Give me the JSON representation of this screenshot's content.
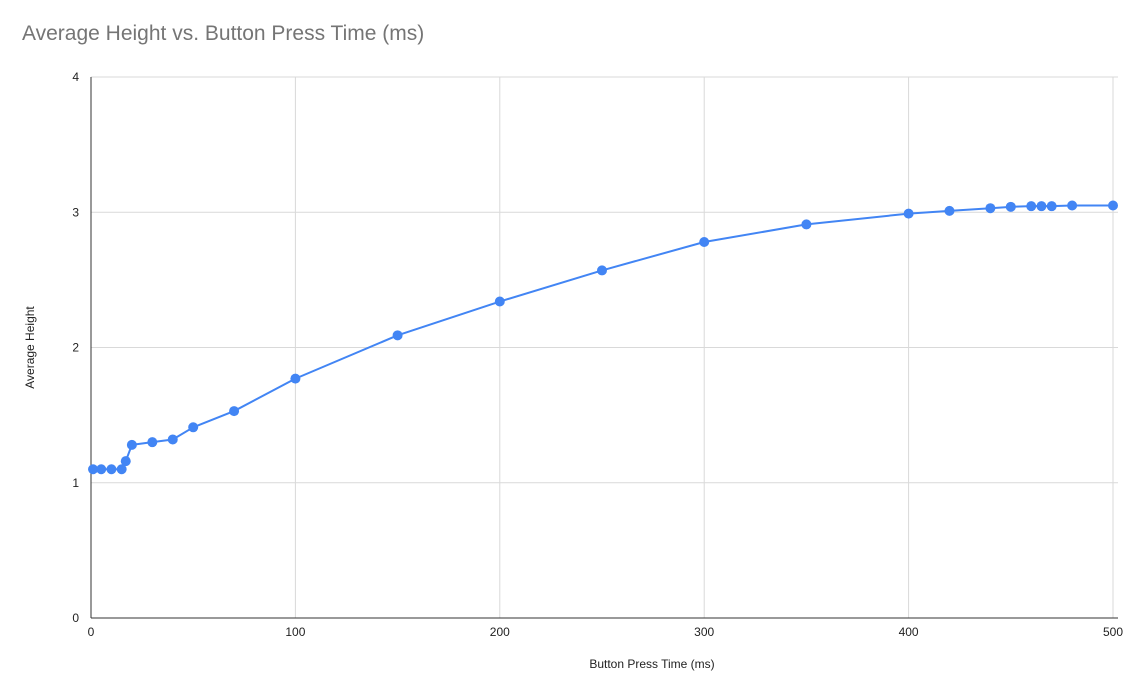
{
  "chart_data": {
    "type": "line",
    "title": "Average Height vs. Button Press Time (ms)",
    "xlabel": "Button Press Time (ms)",
    "ylabel": "Average Height",
    "xlim": [
      0,
      500
    ],
    "ylim": [
      0,
      4
    ],
    "xticks": [
      0,
      100,
      200,
      300,
      400,
      500
    ],
    "yticks": [
      0,
      1,
      2,
      3,
      4
    ],
    "grid": true,
    "legend": "none",
    "series": [
      {
        "color": "#4285f4",
        "points": [
          [
            1,
            1.1
          ],
          [
            5,
            1.1
          ],
          [
            10,
            1.1
          ],
          [
            15,
            1.1
          ],
          [
            17,
            1.16
          ],
          [
            20,
            1.28
          ],
          [
            30,
            1.3
          ],
          [
            40,
            1.32
          ],
          [
            50,
            1.41
          ],
          [
            70,
            1.53
          ],
          [
            100,
            1.77
          ],
          [
            150,
            2.09
          ],
          [
            200,
            2.34
          ],
          [
            250,
            2.57
          ],
          [
            300,
            2.78
          ],
          [
            350,
            2.91
          ],
          [
            400,
            2.99
          ],
          [
            420,
            3.01
          ],
          [
            440,
            3.03
          ],
          [
            450,
            3.04
          ],
          [
            460,
            3.045
          ],
          [
            465,
            3.045
          ],
          [
            470,
            3.045
          ],
          [
            480,
            3.05
          ],
          [
            500,
            3.05
          ]
        ]
      }
    ]
  }
}
